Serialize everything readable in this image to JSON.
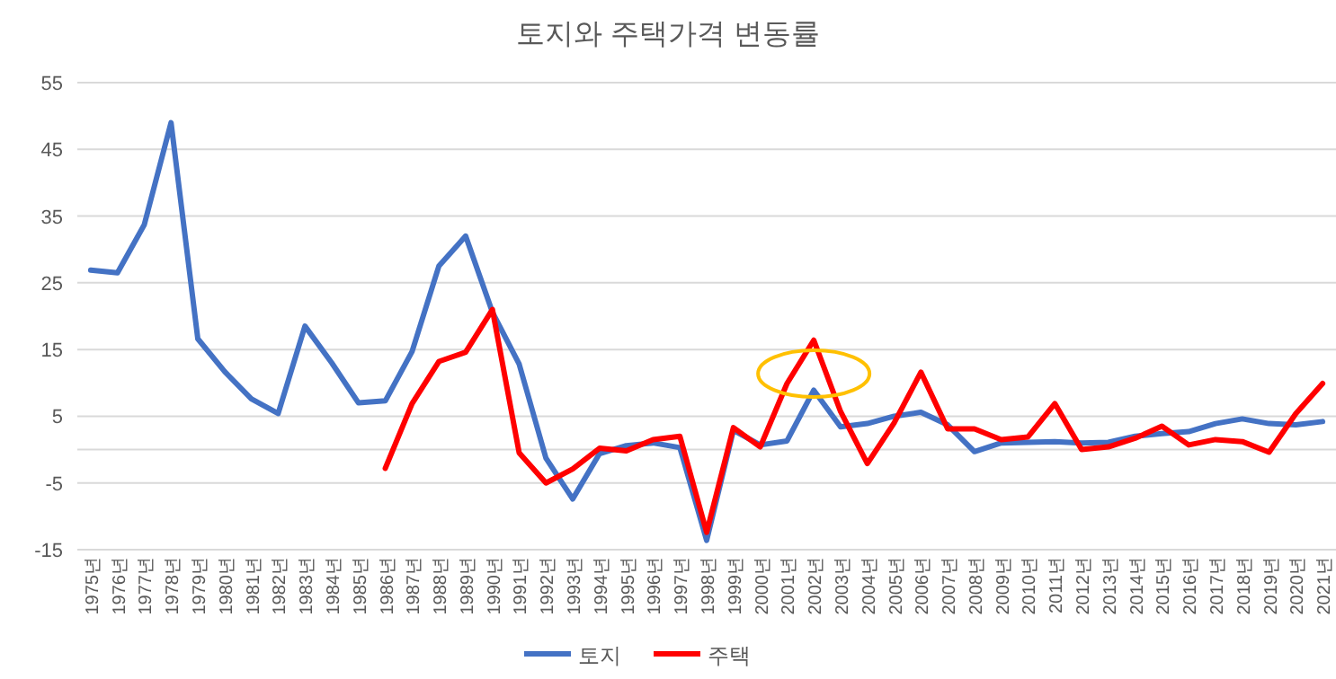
{
  "chart_data": {
    "type": "line",
    "title": "토지와 주택가격 변동률",
    "categories": [
      "1975년",
      "1976년",
      "1977년",
      "1978년",
      "1979년",
      "1980년",
      "1981년",
      "1982년",
      "1983년",
      "1984년",
      "1985년",
      "1986년",
      "1987년",
      "1988년",
      "1989년",
      "1990년",
      "1991년",
      "1992년",
      "1993년",
      "1994년",
      "1995년",
      "1996년",
      "1997년",
      "1998년",
      "1999년",
      "2000년",
      "2001년",
      "2002년",
      "2003년",
      "2004년",
      "2005년",
      "2006년",
      "2007년",
      "2008년",
      "2009년",
      "2010년",
      "2011년",
      "2012년",
      "2013년",
      "2014년",
      "2015년",
      "2016년",
      "2017년",
      "2018년",
      "2019년",
      "2020년",
      "2021년"
    ],
    "series": [
      {
        "name": "토지",
        "color": "#4472c4",
        "values": [
          26.9,
          26.5,
          33.7,
          49,
          16.6,
          11.7,
          7.6,
          5.4,
          18.5,
          13,
          7.0,
          7.3,
          14.7,
          27.5,
          32,
          20.6,
          12.8,
          -1.3,
          -7.4,
          -0.6,
          0.6,
          1.0,
          0.3,
          -13.6,
          2.9,
          0.7,
          1.3,
          8.9,
          3.4,
          3.9,
          5,
          5.6,
          3.7,
          -0.3,
          1,
          1.1,
          1.2,
          1,
          1.1,
          2,
          2.4,
          2.7,
          3.9,
          4.6,
          3.9,
          3.7,
          4.2
        ]
      },
      {
        "name": "주택",
        "color": "#ff0000",
        "values": [
          null,
          null,
          null,
          null,
          null,
          null,
          null,
          null,
          null,
          null,
          null,
          -2.8,
          6.9,
          13.2,
          14.6,
          21,
          -0.5,
          -5,
          -2.9,
          0.2,
          -0.2,
          1.5,
          2,
          -12.4,
          3.3,
          0.4,
          9.9,
          16.4,
          5.7,
          -2.1,
          4,
          11.6,
          3.1,
          3.1,
          1.5,
          1.9,
          6.9,
          0,
          0.4,
          1.7,
          3.5,
          0.7,
          1.5,
          1.2,
          -0.4,
          5.4,
          9.9
        ]
      }
    ],
    "ylim": [
      -15,
      55
    ],
    "yticks": [
      -15,
      -5,
      5,
      15,
      25,
      35,
      45,
      55
    ],
    "grid": "y",
    "legend": "bottom",
    "line_style": "solid",
    "marker": "none"
  }
}
